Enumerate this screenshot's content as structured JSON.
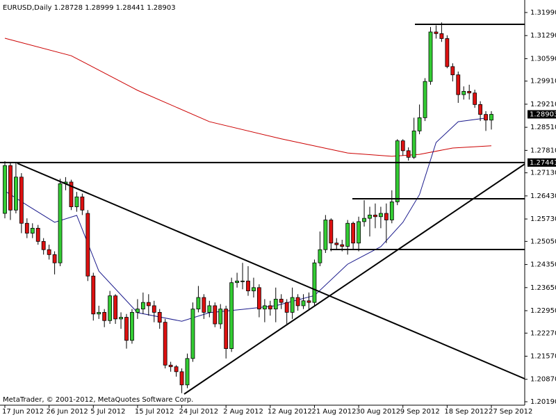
{
  "chart_data": {
    "type": "candlestick",
    "title": "EURUSD,Daily 1.28728 1.28999 1.28441 1.28903",
    "footer": "MetaTrader, © 2001-2012, MetaQuotes Software Corp.",
    "categories": [
      "17 Jun 2012",
      null,
      null,
      null,
      null,
      null,
      null,
      null,
      "26 Jun 2012",
      null,
      null,
      null,
      null,
      null,
      null,
      null,
      "5 Jul 2012",
      null,
      null,
      null,
      null,
      null,
      null,
      null,
      "15 Jul 2012",
      null,
      null,
      null,
      null,
      null,
      null,
      null,
      "24 Jul 2012",
      null,
      null,
      null,
      null,
      null,
      null,
      null,
      "2 Aug 2012",
      null,
      null,
      null,
      null,
      null,
      null,
      null,
      "12 Aug 2012",
      null,
      null,
      null,
      null,
      null,
      null,
      null,
      "21 Aug 2012",
      null,
      null,
      null,
      null,
      null,
      null,
      null,
      "30 Aug 2012",
      null,
      null,
      null,
      null,
      null,
      null,
      null,
      "9 Sep 2012",
      null,
      null,
      null,
      null,
      null,
      null,
      null,
      "18 Sep 2012",
      null,
      null,
      null,
      null,
      null,
      null,
      null,
      "27 Sep 2012"
    ],
    "open": [
      1.259,
      1.2735,
      1.26,
      1.27,
      1.256,
      1.253,
      1.2545,
      1.2505,
      1.248,
      1.2465,
      1.244,
      1.268,
      1.2685,
      1.261,
      1.264,
      1.259,
      1.24,
      1.2285,
      1.229,
      1.2265,
      1.234,
      1.227,
      1.2275,
      1.2205,
      1.229,
      1.23,
      1.232,
      1.231,
      1.229,
      1.226,
      1.213,
      1.2125,
      1.211,
      1.207,
      1.215,
      1.23,
      1.2335,
      1.229,
      1.231,
      1.2255,
      1.23,
      1.218,
      1.238,
      1.2385,
      1.2385,
      1.2355,
      1.2365,
      1.23,
      1.231,
      1.23,
      1.233,
      1.232,
      1.229,
      1.2335,
      1.231,
      1.2325,
      1.232,
      1.244,
      1.248,
      1.257,
      1.25,
      1.2495,
      1.249,
      1.256,
      1.25,
      1.2565,
      1.2575,
      1.2585,
      1.258,
      1.259,
      1.257,
      1.2625,
      1.281,
      1.278,
      1.276,
      1.284,
      1.288,
      1.299,
      1.314,
      1.3135,
      1.312,
      1.3035,
      1.301,
      1.295,
      1.296,
      1.2955,
      1.292,
      1.289,
      1.28728
    ],
    "high": [
      1.2748,
      1.2745,
      1.2744,
      1.2712,
      1.2575,
      1.256,
      1.2555,
      1.2515,
      1.2495,
      1.2475,
      1.2695,
      1.27,
      1.2692,
      1.2655,
      1.265,
      1.26,
      1.241,
      1.231,
      1.23,
      1.2355,
      1.2345,
      1.229,
      1.2285,
      1.23,
      1.233,
      1.235,
      1.2345,
      1.2325,
      1.23,
      1.227,
      1.214,
      1.213,
      1.212,
      1.2165,
      1.232,
      1.237,
      1.2345,
      1.2325,
      1.232,
      1.2315,
      1.231,
      1.2395,
      1.241,
      1.244,
      1.243,
      1.2395,
      1.2375,
      1.233,
      1.2325,
      1.2365,
      1.2345,
      1.233,
      1.2365,
      1.2345,
      1.2345,
      1.235,
      1.245,
      1.2535,
      1.2585,
      1.2575,
      1.2515,
      1.251,
      1.257,
      1.2565,
      1.258,
      1.263,
      1.261,
      1.262,
      1.261,
      1.262,
      1.266,
      1.2815,
      1.2815,
      1.279,
      1.288,
      1.292,
      1.3,
      1.3155,
      1.316,
      1.3169,
      1.313,
      1.3045,
      1.302,
      1.2975,
      1.298,
      1.2965,
      1.293,
      1.29,
      1.28999
    ],
    "low": [
      1.2575,
      1.257,
      1.259,
      1.253,
      1.2515,
      1.2515,
      1.2495,
      1.2465,
      1.245,
      1.2405,
      1.243,
      1.266,
      1.26,
      1.2595,
      1.2585,
      1.2385,
      1.2265,
      1.227,
      1.2245,
      1.2255,
      1.2255,
      1.224,
      1.218,
      1.2195,
      1.227,
      1.2285,
      1.228,
      1.226,
      1.224,
      1.212,
      1.211,
      1.2095,
      1.2045,
      1.206,
      1.214,
      1.229,
      1.227,
      1.2275,
      1.2245,
      1.224,
      1.215,
      1.217,
      1.2365,
      1.236,
      1.234,
      1.2335,
      1.2275,
      1.226,
      1.228,
      1.226,
      1.23,
      1.2255,
      1.227,
      1.2295,
      1.23,
      1.23,
      1.231,
      1.243,
      1.247,
      1.2475,
      1.248,
      1.2475,
      1.2465,
      1.248,
      1.2475,
      1.255,
      1.252,
      1.2545,
      1.2545,
      1.25,
      1.256,
      1.2615,
      1.2765,
      1.275,
      1.2755,
      1.283,
      1.287,
      1.298,
      1.312,
      1.311,
      1.303,
      1.299,
      1.2925,
      1.2935,
      1.2935,
      1.291,
      1.287,
      1.284,
      1.28441
    ],
    "close": [
      1.2735,
      1.26,
      1.27,
      1.256,
      1.253,
      1.2545,
      1.2505,
      1.248,
      1.2465,
      1.244,
      1.268,
      1.2685,
      1.261,
      1.264,
      1.26,
      1.24,
      1.2285,
      1.229,
      1.2265,
      1.234,
      1.227,
      1.2275,
      1.2205,
      1.229,
      1.23,
      1.232,
      1.231,
      1.229,
      1.226,
      1.213,
      1.2125,
      1.211,
      1.207,
      1.215,
      1.23,
      1.2335,
      1.229,
      1.231,
      1.2255,
      1.23,
      1.218,
      1.238,
      1.2385,
      1.2385,
      1.2355,
      1.2365,
      1.23,
      1.231,
      1.23,
      1.233,
      1.232,
      1.229,
      1.2335,
      1.231,
      1.2325,
      1.232,
      1.244,
      1.248,
      1.257,
      1.25,
      1.2495,
      1.249,
      1.256,
      1.25,
      1.2565,
      1.2575,
      1.2585,
      1.258,
      1.259,
      1.257,
      1.2625,
      1.281,
      1.278,
      1.276,
      1.284,
      1.288,
      1.299,
      1.314,
      1.3135,
      1.312,
      1.3035,
      1.301,
      1.295,
      1.296,
      1.2955,
      1.292,
      1.289,
      1.28728,
      1.28903
    ],
    "up_color": "#33cc33",
    "down_color": "#dd1111",
    "ma_lines": [
      {
        "color": "#cc0000",
        "x": [
          0,
          12,
          24,
          37,
          50,
          62,
          70,
          75,
          81,
          88
        ],
        "values": [
          1.3121,
          1.3068,
          1.2963,
          1.2868,
          1.2816,
          1.2773,
          1.2763,
          1.2769,
          1.2788,
          1.2795
        ]
      },
      {
        "color": "#1a1a8c",
        "x": [
          0,
          4,
          9,
          13,
          17,
          24,
          32,
          37,
          43,
          49,
          56,
          62,
          68,
          72,
          75,
          78,
          82,
          87
        ],
        "values": [
          1.2658,
          1.2615,
          1.2563,
          1.2584,
          1.2415,
          1.2289,
          1.2263,
          1.2289,
          1.2299,
          1.231,
          1.2341,
          1.2436,
          1.2489,
          1.2563,
          1.2647,
          1.2805,
          1.2868,
          1.2879
        ]
      }
    ],
    "price_line": {
      "value": 1.27441,
      "label": "1.27441"
    },
    "last_price": {
      "value": 1.28903,
      "label": "1.28903"
    },
    "ylim": [
      1.20085,
      1.32369
    ],
    "yticks": [
      {
        "value": 1.3199,
        "label": "1.31990"
      },
      {
        "value": 1.3129,
        "label": "1.31290"
      },
      {
        "value": 1.3059,
        "label": "1.30590"
      },
      {
        "value": 1.2991,
        "label": "1.29910"
      },
      {
        "value": 1.2921,
        "label": "1.29210"
      },
      {
        "value": 1.2851,
        "label": "1.28510"
      },
      {
        "value": 1.2781,
        "label": "1.27810"
      },
      {
        "value": 1.2713,
        "label": "1.27130"
      },
      {
        "value": 1.2643,
        "label": "1.26430"
      },
      {
        "value": 1.2573,
        "label": "1.25730"
      },
      {
        "value": 1.2505,
        "label": "1.25050"
      },
      {
        "value": 1.2435,
        "label": "1.24350"
      },
      {
        "value": 1.2365,
        "label": "1.23650"
      },
      {
        "value": 1.2295,
        "label": "1.22950"
      },
      {
        "value": 1.2227,
        "label": "1.22270"
      },
      {
        "value": 1.2157,
        "label": "1.21570"
      },
      {
        "value": 1.2087,
        "label": "1.20870"
      },
      {
        "value": 1.2019,
        "label": "1.20190"
      }
    ]
  }
}
